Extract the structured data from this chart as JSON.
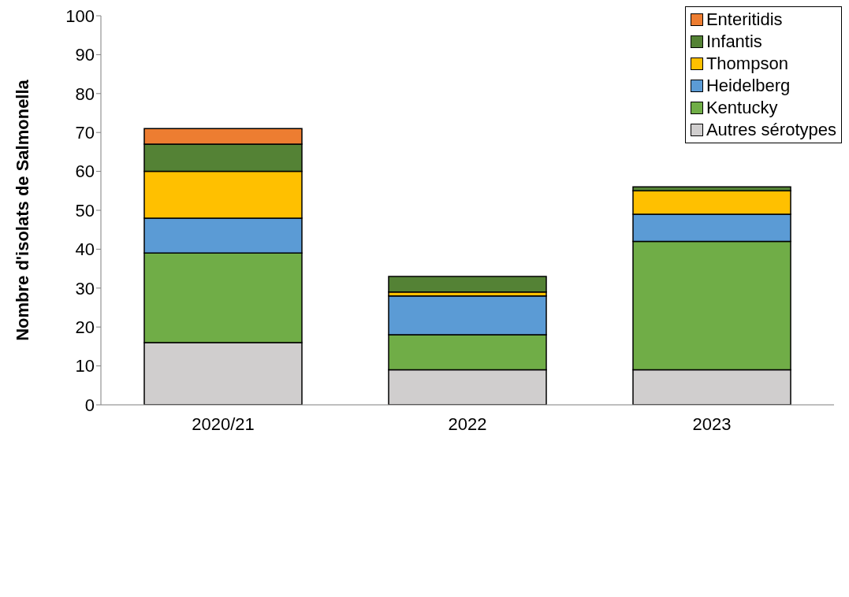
{
  "chart_data": {
    "type": "bar",
    "stacked": true,
    "ylabel": "Nombre d'isolats de Salmonella",
    "categories": [
      "2020/21",
      "2022",
      "2023"
    ],
    "series": [
      {
        "name": "Autres sérotypes",
        "color": "#d0cece",
        "values": [
          16,
          9,
          9
        ]
      },
      {
        "name": "Kentucky",
        "color": "#70ad47",
        "values": [
          23,
          9,
          33
        ]
      },
      {
        "name": "Heidelberg",
        "color": "#5b9bd5",
        "values": [
          9,
          10,
          7
        ]
      },
      {
        "name": "Thompson",
        "color": "#ffc000",
        "values": [
          12,
          1,
          6
        ]
      },
      {
        "name": "Infantis",
        "color": "#548235",
        "values": [
          7,
          4,
          1
        ]
      },
      {
        "name": "Enteritidis",
        "color": "#ed7d31",
        "values": [
          4,
          0,
          0
        ]
      }
    ],
    "ylim": [
      0,
      100
    ],
    "yticks": [
      0,
      10,
      20,
      30,
      40,
      50,
      60,
      70,
      80,
      90,
      100
    ],
    "grid": false,
    "legend": "top right"
  }
}
